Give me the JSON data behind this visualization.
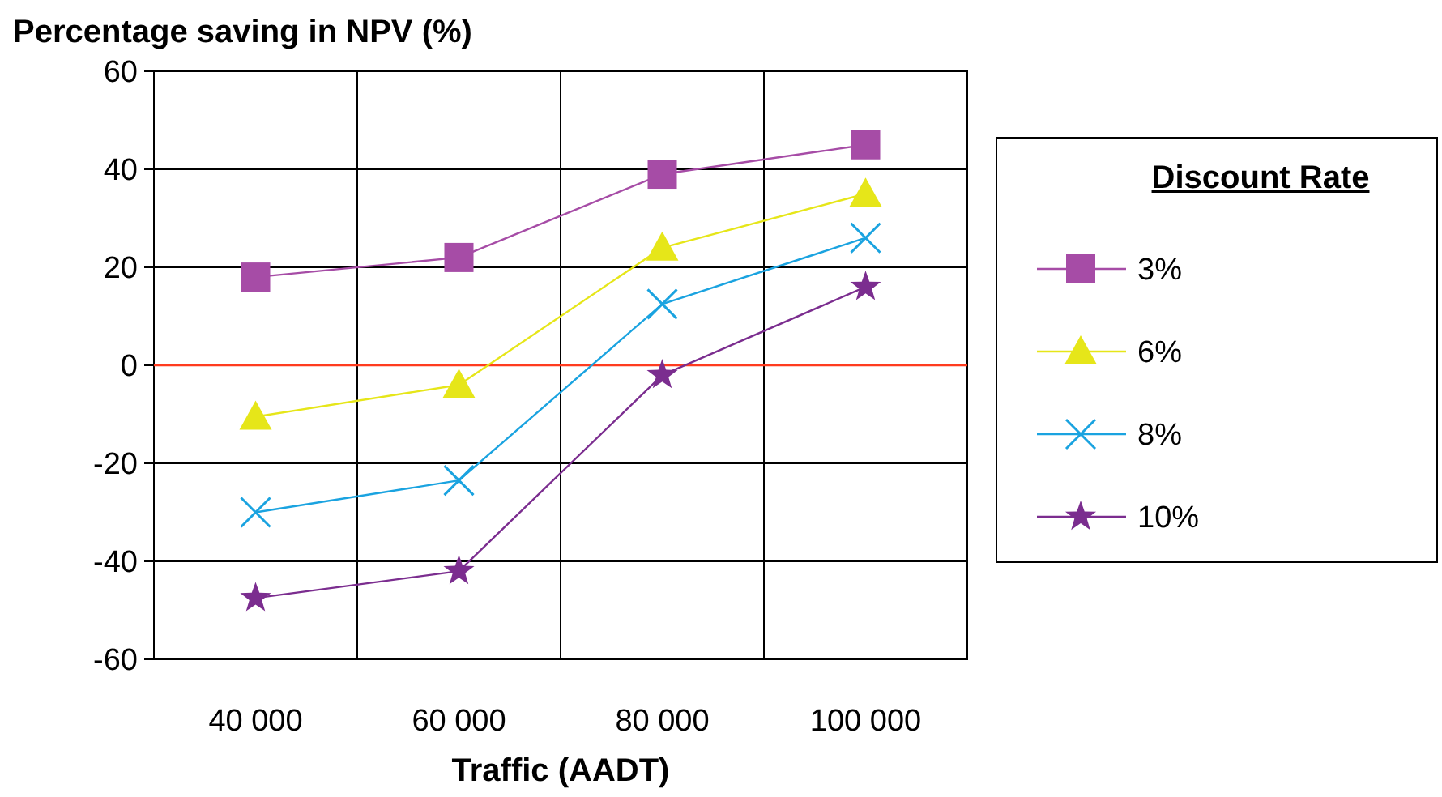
{
  "chart_data": {
    "type": "line",
    "ylabel": "Percentage saving in NPV (%)",
    "xlabel": "Traffic (AADT)",
    "legend_title": "Discount Rate",
    "categories": [
      "40 000",
      "60 000",
      "80 000",
      "100 000"
    ],
    "series": [
      {
        "name": "3%",
        "color": "#a64ca6",
        "marker": "square",
        "values": [
          18,
          22,
          39,
          45
        ]
      },
      {
        "name": "6%",
        "color": "#e6e619",
        "marker": "triangle",
        "values": [
          -10.5,
          -4,
          24,
          35
        ]
      },
      {
        "name": "8%",
        "color": "#1aa3e0",
        "marker": "cross",
        "values": [
          -30,
          -23.5,
          12.5,
          26
        ]
      },
      {
        "name": "10%",
        "color": "#7b2d8f",
        "marker": "star",
        "values": [
          -47.5,
          -42,
          -2,
          16
        ]
      }
    ],
    "ylim": [
      -60,
      60
    ],
    "yticks": [
      -60,
      -40,
      -20,
      0,
      20,
      40,
      60
    ],
    "grid": true,
    "legend": "right",
    "ref_lines": [
      {
        "axis": "y",
        "value": 0,
        "color": "#ff3b1f"
      }
    ]
  }
}
